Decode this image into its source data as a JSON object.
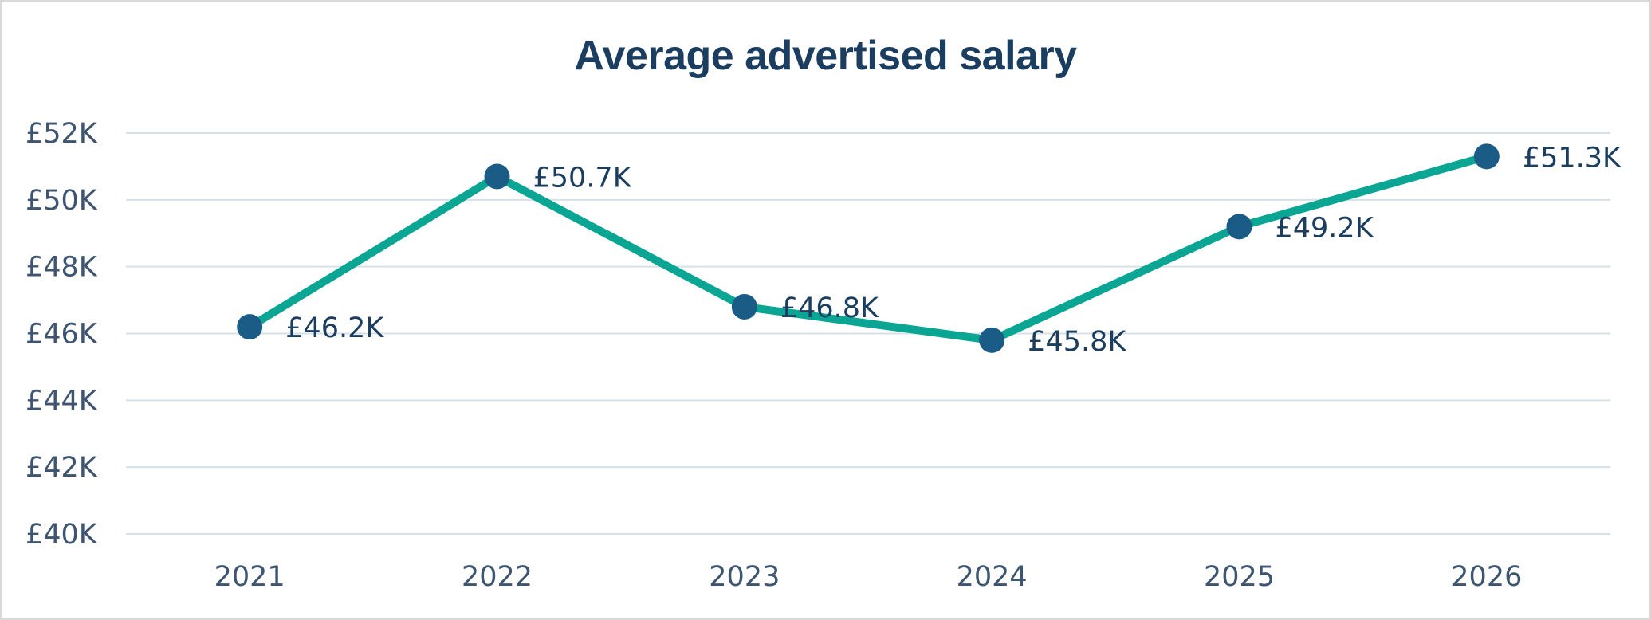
{
  "chart_data": {
    "type": "line",
    "title": "Average advertised salary",
    "xlabel": "",
    "ylabel": "",
    "categories": [
      "2021",
      "2022",
      "2023",
      "2024",
      "2025",
      "2026"
    ],
    "series": [
      {
        "values": [
          46.2,
          50.7,
          46.8,
          45.8,
          49.2,
          51.3
        ],
        "data_labels": [
          "£46.2K",
          "£50.7K",
          "£46.8K",
          "£45.8K",
          "£49.2K",
          "£51.3K"
        ],
        "line_color": "#0aa693",
        "marker_color": "#1b5c86"
      }
    ],
    "ylim": [
      40,
      52
    ],
    "yticks": [
      40,
      42,
      44,
      46,
      48,
      50,
      52
    ],
    "ytick_labels": [
      "£40K",
      "£42K",
      "£44K",
      "£46K",
      "£48K",
      "£50K",
      "£52K"
    ],
    "grid": true,
    "grid_color": "#d6e0e8",
    "legend": "none"
  }
}
